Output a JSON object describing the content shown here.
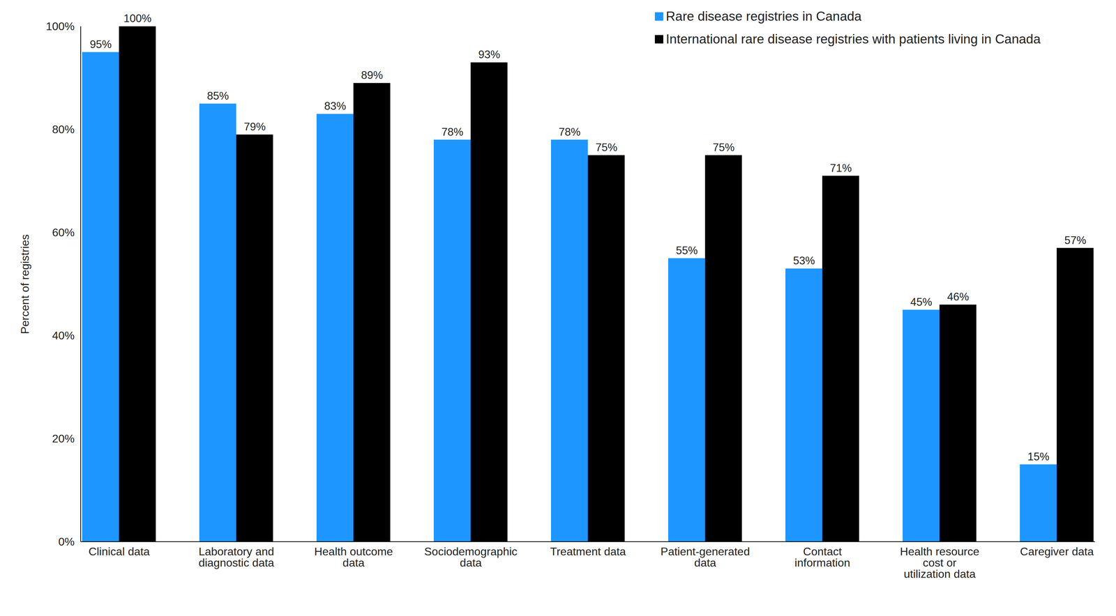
{
  "chart_data": {
    "type": "bar",
    "y_label": "Percent of registries",
    "categories": [
      "Clinical data",
      "Laboratory and diagnostic data",
      "Health outcome data",
      "Sociodemographic data",
      "Treatment data",
      "Patient-generated data",
      "Contact information",
      "Health resource cost or utilization data",
      "Caregiver data"
    ],
    "series": [
      {
        "name": "Rare disease registries in Canada",
        "color": "#1e96ff",
        "values": [
          95,
          85,
          83,
          78,
          78,
          55,
          53,
          45,
          15
        ],
        "value_labels": [
          "95%",
          "85%",
          "83%",
          "78%",
          "78%",
          "55%",
          "53%",
          "45%",
          "15%"
        ]
      },
      {
        "name": "International rare disease registries with patients living in Canada",
        "color": "#000000",
        "values": [
          100,
          79,
          89,
          93,
          75,
          75,
          71,
          46,
          57
        ],
        "value_labels": [
          "100%",
          "79%",
          "89%",
          "93%",
          "75%",
          "75%",
          "71%",
          "46%",
          "57%"
        ]
      }
    ],
    "ylim": [
      0,
      100
    ],
    "yticks": [
      {
        "value": 0,
        "label": "0%"
      },
      {
        "value": 20,
        "label": "20%"
      },
      {
        "value": 40,
        "label": "40%"
      },
      {
        "value": 60,
        "label": "60%"
      },
      {
        "value": 80,
        "label": "80%"
      },
      {
        "value": 100,
        "label": "100%"
      }
    ],
    "data_labels": true,
    "legend": "top-right",
    "grid": false
  }
}
